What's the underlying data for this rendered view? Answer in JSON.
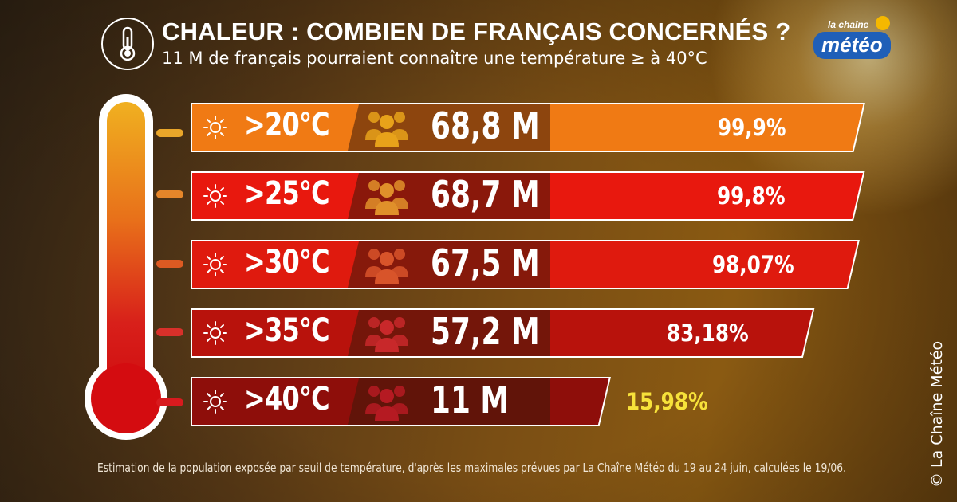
{
  "header": {
    "title": "CHALEUR : COMBIEN DE FRANÇAIS CONCERNÉS ?",
    "subtitle": "11 M de français pourraient connaître une température ≥ à 40°C",
    "logo_top": "la chaîne",
    "logo_main": "météo"
  },
  "icons": {
    "badge": "thermometer-icon",
    "row_left": "sun-icon",
    "row_people": "people-group-icon"
  },
  "colors": {
    "row_colors": [
      "#f07a14",
      "#e8180e",
      "#df1a0e",
      "#b8120c",
      "#8e0e0a"
    ],
    "people_colors": [
      "#e8a21a",
      "#e0902a",
      "#d8542a",
      "#c8282a",
      "#b51a22"
    ],
    "pct_last": "#f7e23a"
  },
  "chart_data": {
    "type": "bar",
    "categories": [
      ">20°C",
      ">25°C",
      ">30°C",
      ">35°C",
      ">40°C"
    ],
    "population_labels": [
      "68,8 M",
      "68,7 M",
      "67,5 M",
      "57,2 M",
      "11 M"
    ],
    "population_millions": [
      68.8,
      68.7,
      67.5,
      57.2,
      11
    ],
    "percent_labels": [
      "99,9%",
      "99,8%",
      "98,07%",
      "83,18%",
      "15,98%"
    ],
    "values": [
      99.9,
      99.8,
      98.07,
      83.18,
      15.98
    ],
    "ylim": [
      0,
      100
    ]
  },
  "footer": {
    "note": "Estimation de la population exposée par seuil de température, d'après les maximales prévues par La Chaîne Météo du 19 au 24 juin, calculées le 19/06.",
    "credit": "© La Chaîne Météo"
  }
}
